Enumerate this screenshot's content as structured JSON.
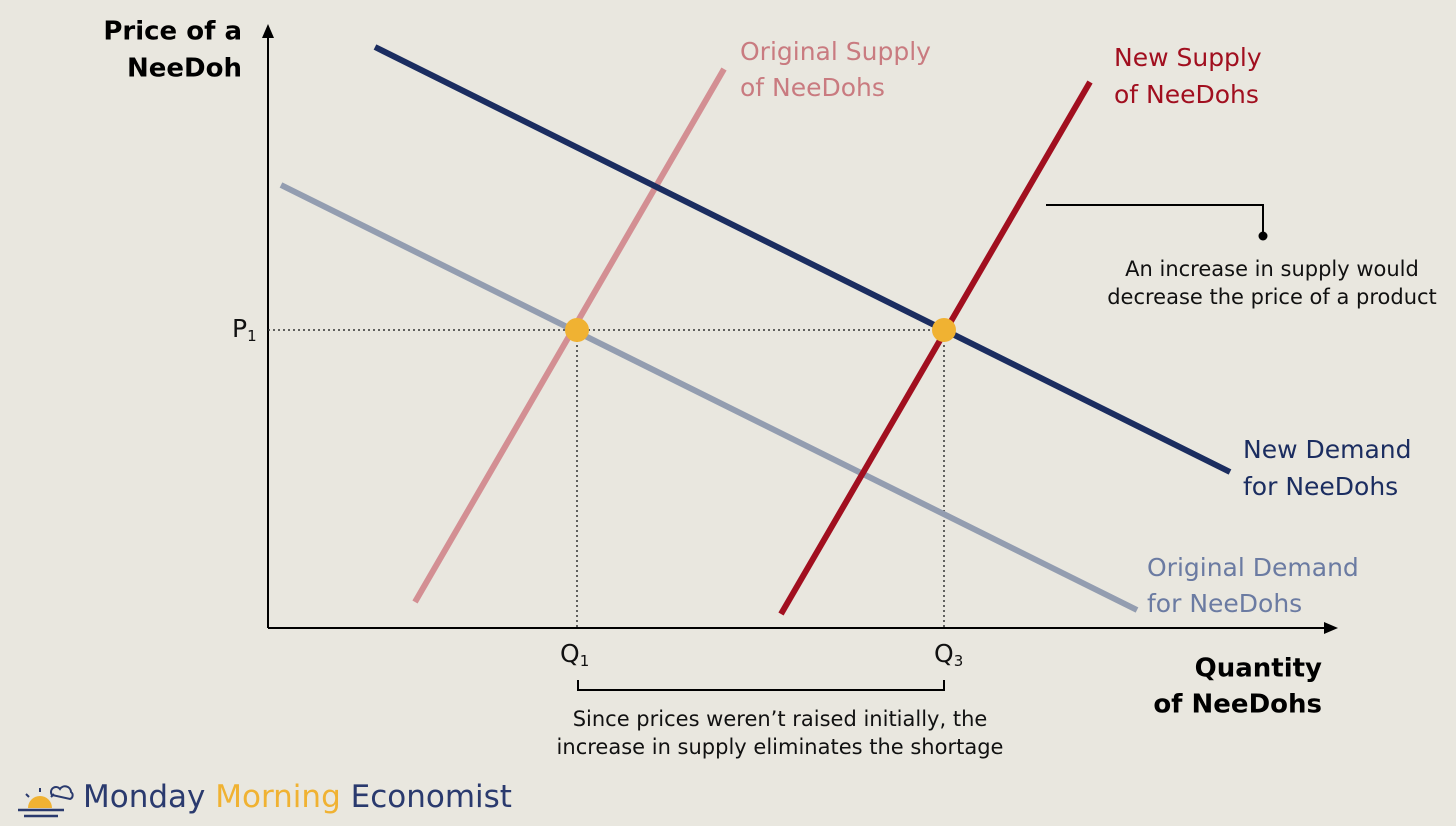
{
  "axes": {
    "y_label": [
      "Price of a",
      "NeeDoh"
    ],
    "x_label": [
      "Quantity",
      "of NeeDohs"
    ]
  },
  "curves": [
    {
      "label": [
        "Original Supply",
        "of NeeDohs"
      ]
    },
    {
      "label": [
        "New Supply",
        "of NeeDohs"
      ]
    },
    {
      "label": [
        "New Demand",
        "for NeeDohs"
      ]
    },
    {
      "label": [
        "Original Demand",
        "for NeeDohs"
      ]
    }
  ],
  "markers": {
    "p1": {
      "main": "P",
      "sub": "1"
    },
    "q1": {
      "main": "Q",
      "sub": "1"
    },
    "q3": {
      "main": "Q",
      "sub": "3"
    }
  },
  "annotations": [
    [
      "An increase in supply would",
      "decrease the price of a product"
    ],
    [
      "Since prices weren’t raised initially, the",
      "increase in supply eliminates the shortage"
    ]
  ],
  "brand": {
    "words": [
      "Monday",
      "Morning",
      "Economist"
    ]
  }
}
